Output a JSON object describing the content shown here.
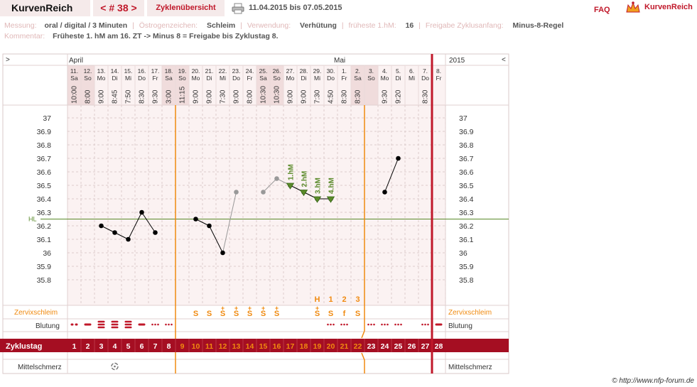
{
  "header": {
    "logo": "KurvenReich",
    "cycle_nav": "< # 38 >",
    "overview_button": "Zyklenübersicht",
    "date_range": "11.04.2015 bis 07.05.2015",
    "faq": "FAQ",
    "brand": "KurvenReich"
  },
  "info": {
    "measurement_label": "Messung:",
    "measurement_value": "oral / digital / 3 Minuten",
    "estrogen_label": "Östrogenzeichen:",
    "estrogen_value": "Schleim",
    "usage_label": "Verwendung:",
    "usage_value": "Verhütung",
    "earliest_label": "früheste 1.hM:",
    "earliest_value": "16",
    "cycle_start_label": "Freigabe Zyklusanfang:",
    "cycle_start_value": "Minus-8-Regel",
    "comment_label": "Kommentar:",
    "comment_value": "Früheste 1. hM am 16. ZT -> Minus 8 = Freigabe bis Zyklustag 8."
  },
  "chart": {
    "left_arrow": ">",
    "right_arrow": "<",
    "year": "2015",
    "month_april": "April",
    "month_may": "Mai",
    "hl_label": "HL",
    "hl_value": 36.25,
    "y_ticks": [
      "37",
      "36.9",
      "36.8",
      "36.7",
      "36.6",
      "36.5",
      "36.4",
      "36.3",
      "36.2",
      "36.1",
      "36",
      "35.9",
      "35.8"
    ],
    "row_labels": {
      "cervical": "Zervixschleim",
      "bleeding": "Blutung",
      "cycle_day": "Zyklustag",
      "mittelschmerz": "Mittelschmerz"
    },
    "colors": {
      "accent": "#c0182a",
      "orange": "#f08a10",
      "cycle_bar": "#a50e22",
      "green": "#5a8a2a",
      "grid_bg": "#fbf2f2"
    },
    "days": [
      {
        "date": "11.",
        "wd": "Sa",
        "time": "10:00",
        "day": "1",
        "weekend": true
      },
      {
        "date": "12.",
        "wd": "So",
        "time": "8:00",
        "day": "2",
        "weekend": true
      },
      {
        "date": "13.",
        "wd": "Mo",
        "time": "9:00",
        "day": "3",
        "weekend": false
      },
      {
        "date": "14.",
        "wd": "Di",
        "time": "8:45",
        "day": "4",
        "weekend": false
      },
      {
        "date": "15.",
        "wd": "Mi",
        "time": "7:50",
        "day": "5",
        "weekend": false
      },
      {
        "date": "16.",
        "wd": "Do",
        "time": "8:30",
        "day": "6",
        "weekend": false
      },
      {
        "date": "17.",
        "wd": "Fr",
        "time": "9:30",
        "day": "7",
        "weekend": false
      },
      {
        "date": "18.",
        "wd": "Sa",
        "time": "3:00",
        "day": "8",
        "weekend": true
      },
      {
        "date": "19.",
        "wd": "So",
        "time": "11:15",
        "day": "9",
        "weekend": true
      },
      {
        "date": "20.",
        "wd": "Mo",
        "time": "9:00",
        "day": "10",
        "weekend": false
      },
      {
        "date": "21.",
        "wd": "Di",
        "time": "9:00",
        "day": "11",
        "weekend": false
      },
      {
        "date": "22.",
        "wd": "Mi",
        "time": "7:30",
        "day": "12",
        "weekend": false
      },
      {
        "date": "23.",
        "wd": "Do",
        "time": "9:00",
        "day": "13",
        "weekend": false
      },
      {
        "date": "24.",
        "wd": "Fr",
        "time": "8:00",
        "day": "14",
        "weekend": false
      },
      {
        "date": "25.",
        "wd": "Sa",
        "time": "10:30",
        "day": "15",
        "weekend": true
      },
      {
        "date": "26.",
        "wd": "So",
        "time": "10:30",
        "day": "16",
        "weekend": true
      },
      {
        "date": "27.",
        "wd": "Mo",
        "time": "9:00",
        "day": "17",
        "weekend": false
      },
      {
        "date": "28.",
        "wd": "Di",
        "time": "9:00",
        "day": "18",
        "weekend": false
      },
      {
        "date": "29.",
        "wd": "Mi",
        "time": "7:30",
        "day": "19",
        "weekend": false
      },
      {
        "date": "30.",
        "wd": "Do",
        "time": "4:50",
        "day": "20",
        "weekend": false
      },
      {
        "date": "1.",
        "wd": "Fr",
        "time": "8:30",
        "day": "21",
        "weekend": false
      },
      {
        "date": "2.",
        "wd": "Sa",
        "time": "8:30",
        "day": "22",
        "weekend": true
      },
      {
        "date": "3.",
        "wd": "So",
        "time": "",
        "day": "23",
        "weekend": true
      },
      {
        "date": "4.",
        "wd": "Mo",
        "time": "9:30",
        "day": "24",
        "weekend": false
      },
      {
        "date": "5.",
        "wd": "Di",
        "time": "9:20",
        "day": "25",
        "weekend": false
      },
      {
        "date": "6.",
        "wd": "Mi",
        "time": "",
        "day": "26",
        "weekend": false
      },
      {
        "date": "7.",
        "wd": "Do",
        "time": "8:30",
        "day": "27",
        "weekend": false
      },
      {
        "date": "8.",
        "wd": "Fr",
        "time": "",
        "day": "28",
        "weekend": false
      }
    ],
    "cervical": [
      "",
      "",
      "",
      "",
      "",
      "",
      "",
      "",
      "",
      "S",
      "S",
      "S+",
      "S+",
      "S+",
      "S+",
      "S+",
      "",
      "",
      "S+",
      "S",
      "f",
      "S",
      "",
      "",
      "",
      "",
      "",
      ""
    ],
    "peak_markers": [
      {
        "day": 19,
        "label": "H"
      },
      {
        "day": 20,
        "label": "1"
      },
      {
        "day": 21,
        "label": "2"
      },
      {
        "day": 22,
        "label": "3"
      }
    ],
    "bleeding": [
      "two",
      "one",
      "three",
      "three",
      "three",
      "one",
      "dots",
      "dots",
      "",
      "",
      "",
      "",
      "",
      "",
      "",
      "",
      "",
      "",
      "",
      "dots",
      "dots",
      "",
      "dots",
      "dots",
      "dots",
      "",
      "dots",
      "one"
    ],
    "mittelschmerz_day": 4,
    "temps": [
      {
        "day": 3,
        "t": 36.2,
        "seg": 1,
        "excluded": false
      },
      {
        "day": 4,
        "t": 36.15,
        "seg": 1,
        "excluded": false
      },
      {
        "day": 5,
        "t": 36.1,
        "seg": 1,
        "excluded": false
      },
      {
        "day": 6,
        "t": 36.3,
        "seg": 1,
        "excluded": false
      },
      {
        "day": 7,
        "t": 36.15,
        "seg": 1,
        "excluded": false
      },
      {
        "day": 10,
        "t": 36.25,
        "seg": 2,
        "excluded": false
      },
      {
        "day": 11,
        "t": 36.2,
        "seg": 2,
        "excluded": false
      },
      {
        "day": 12,
        "t": 36.0,
        "seg": 2,
        "excluded": false
      },
      {
        "day": 13,
        "t": 36.45,
        "seg": 2,
        "excluded": true
      },
      {
        "day": 15,
        "t": 36.45,
        "seg": 3,
        "excluded": true
      },
      {
        "day": 16,
        "t": 36.55,
        "seg": 3,
        "excluded": true
      },
      {
        "day": 17,
        "t": 36.5,
        "seg": 3,
        "excluded": false
      },
      {
        "day": 18,
        "t": 36.45,
        "seg": 3,
        "excluded": false
      },
      {
        "day": 19,
        "t": 36.4,
        "seg": 3,
        "excluded": false
      },
      {
        "day": 20,
        "t": 36.4,
        "seg": 3,
        "excluded": false
      },
      {
        "day": 24,
        "t": 36.45,
        "seg": 4,
        "excluded": false
      },
      {
        "day": 25,
        "t": 36.7,
        "seg": 4,
        "excluded": false
      }
    ],
    "hm_markers": [
      {
        "day": 17,
        "label": "1.hM"
      },
      {
        "day": 18,
        "label": "2.hM"
      },
      {
        "day": 19,
        "label": "3.hM"
      },
      {
        "day": 20,
        "label": "4.hM"
      }
    ],
    "orange_lines_after_day": [
      8,
      22
    ],
    "red_line_after_day": 27
  },
  "footer": {
    "copyright": "© http://www.nfp-forum.de"
  }
}
